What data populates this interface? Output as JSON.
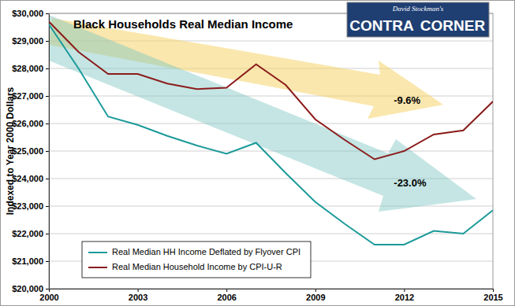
{
  "chart_data": {
    "type": "line",
    "title": "Black Households Real Median Income",
    "y_label": "Indexed to Year 2000 Dollars",
    "x": [
      2000,
      2001,
      2002,
      2003,
      2004,
      2005,
      2006,
      2007,
      2008,
      2009,
      2010,
      2011,
      2012,
      2013,
      2014,
      2015
    ],
    "series": [
      {
        "name": "Real Median HH Income Deflated by Flyover CPI",
        "color": "#1c9a9a",
        "values": [
          29600,
          28000,
          26250,
          25950,
          25550,
          25200,
          24900,
          25300,
          24200,
          23150,
          22350,
          21600,
          21600,
          22100,
          22000,
          22850
        ]
      },
      {
        "name": "Real Median Household Income by CPI-U-R",
        "color": "#8b1c1c",
        "values": [
          29700,
          28600,
          27800,
          27800,
          27450,
          27250,
          27300,
          28150,
          27400,
          26150,
          25400,
          24700,
          25000,
          25600,
          25750,
          26800
        ]
      }
    ],
    "xlim": [
      2000,
      2015
    ],
    "xticks": [
      2000,
      2003,
      2006,
      2009,
      2012,
      2015
    ],
    "ylim": [
      20000,
      30000
    ],
    "yticks": [
      {
        "value": 20000,
        "label": "$20,000"
      },
      {
        "value": 21000,
        "label": "$21,000"
      },
      {
        "value": 22000,
        "label": "$22,000"
      },
      {
        "value": 23000,
        "label": "$23,000"
      },
      {
        "value": 24000,
        "label": "$24,000"
      },
      {
        "value": 25000,
        "label": "$25,000"
      },
      {
        "value": 26000,
        "label": "$26,000"
      },
      {
        "value": 27000,
        "label": "$27,000"
      },
      {
        "value": 28000,
        "label": "$28,000"
      },
      {
        "value": 29000,
        "label": "$29,000"
      },
      {
        "value": 30000,
        "label": "$30,000"
      }
    ],
    "annotations": [
      {
        "text": "-9.6%",
        "x": 2012.1,
        "y": 26800
      },
      {
        "text": "-23.0%",
        "x": 2012.2,
        "y": 23800
      }
    ],
    "grid": true,
    "legend": "lower left"
  },
  "logo": {
    "lines": [
      "David Stockman's",
      "CONTRA",
      "CORNER"
    ]
  }
}
